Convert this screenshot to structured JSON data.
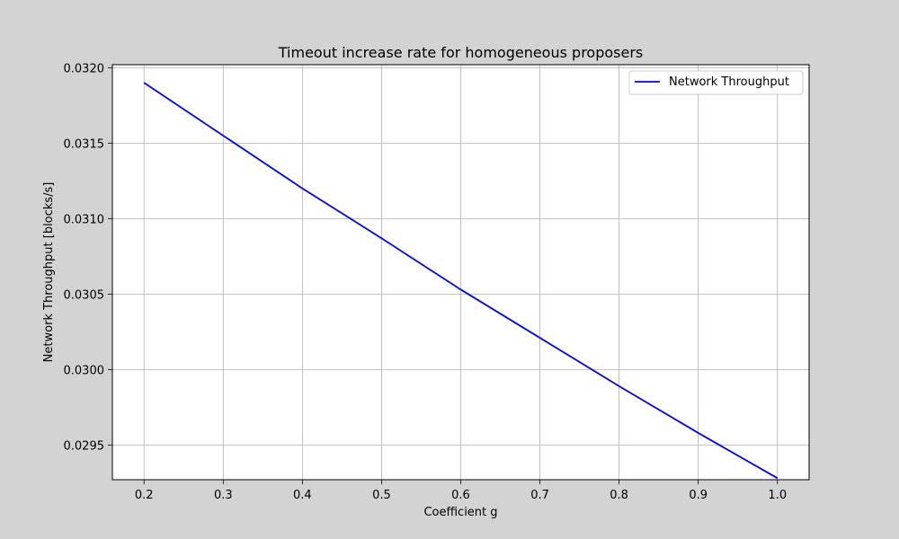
{
  "colors": {
    "figure_background": "#d3d3d3",
    "plot_background": "#ffffff",
    "grid": "#b0b0b0",
    "line": "#0000ff",
    "axis": "#000000"
  },
  "chart_data": {
    "type": "line",
    "title": "Timeout increase rate for homogeneous proposers",
    "xlabel": "Coefficient g",
    "ylabel": "Network Throughput [blocks/s]",
    "xlim": [
      0.16,
      1.04
    ],
    "ylim": [
      0.02927,
      0.03202
    ],
    "xticks": [
      0.2,
      0.3,
      0.4,
      0.5,
      0.6,
      0.7,
      0.8,
      0.9,
      1.0
    ],
    "xtick_labels": [
      "0.2",
      "0.3",
      "0.4",
      "0.5",
      "0.6",
      "0.7",
      "0.8",
      "0.9",
      "1.0"
    ],
    "yticks": [
      0.0295,
      0.03,
      0.0305,
      0.031,
      0.0315,
      0.032
    ],
    "ytick_labels": [
      "0.0295",
      "0.0300",
      "0.0305",
      "0.0310",
      "0.0315",
      "0.0320"
    ],
    "grid": true,
    "legend_position": "top-right",
    "series": [
      {
        "name": "Network Throughput",
        "color": "#0000ff",
        "x": [
          0.2,
          0.3,
          0.4,
          0.5,
          0.6,
          0.7,
          0.8,
          0.9,
          1.0
        ],
        "y": [
          0.0319,
          0.03155,
          0.0312,
          0.03087,
          0.03053,
          0.03021,
          0.02989,
          0.02958,
          0.02928
        ]
      }
    ]
  }
}
